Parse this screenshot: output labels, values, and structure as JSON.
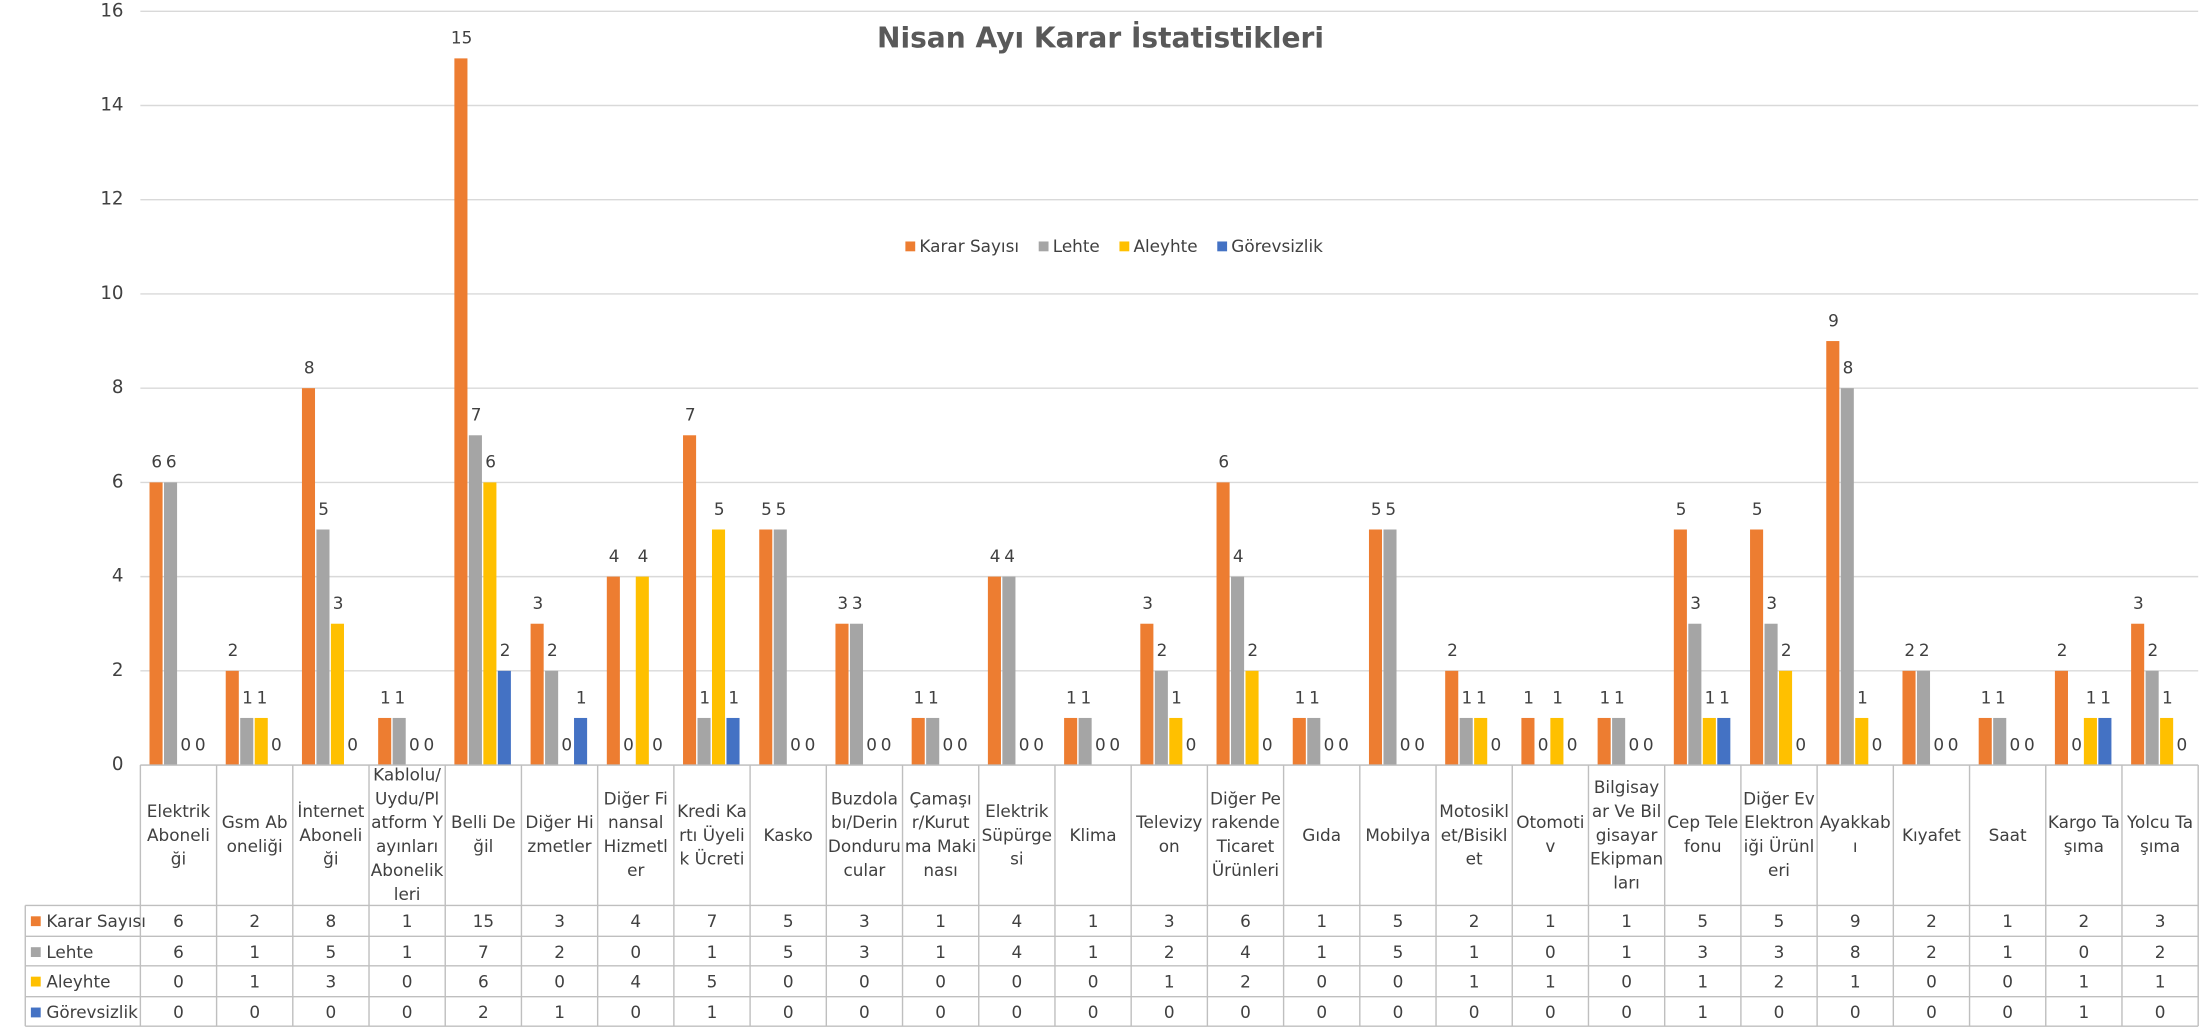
{
  "chart_data": {
    "type": "bar",
    "title": "Nisan Ayı Karar İstatistikleri",
    "categories": [
      "Elektrik Aboneliği",
      "Gsm Aboneliği",
      "İnternet Aboneliği",
      "Kablolu/Uydu/Platform Yayınları Abonelikleri",
      "Belli Değil",
      "Diğer Hizmetler",
      "Diğer Finansal Hizmetler",
      "Kredi Kartı Üyelik Ücreti",
      "Kasko",
      "Buzdolabı/Derin Dondurucular",
      "Çamaşır/Kurutma Makinası",
      "Elektrik Süpürgesi",
      "Klima",
      "Televizyon",
      "Diğer Perakende Ticaret Ürünleri",
      "Gıda",
      "Mobilya",
      "Motosiklet/Bisiklet",
      "Otomotiv",
      "Bilgisayar Ve Bilgisayar Ekipmanları",
      "Cep Telefonu",
      "Diğer Ev Elektroniği Ürünleri",
      "Ayakkabı",
      "Kıyafet",
      "Saat",
      "Kargo Taşıma",
      "Yolcu Taşıma"
    ],
    "series": [
      {
        "name": "Karar Sayısı",
        "color": "#ED7D31",
        "values": [
          6,
          2,
          8,
          1,
          15,
          3,
          4,
          7,
          5,
          3,
          1,
          4,
          1,
          3,
          6,
          1,
          5,
          2,
          1,
          1,
          5,
          5,
          9,
          2,
          1,
          2,
          3
        ]
      },
      {
        "name": "Lehte",
        "color": "#A5A5A5",
        "values": [
          6,
          1,
          5,
          1,
          7,
          2,
          0,
          1,
          5,
          3,
          1,
          4,
          1,
          2,
          4,
          1,
          5,
          1,
          0,
          1,
          3,
          3,
          8,
          2,
          1,
          0,
          2
        ]
      },
      {
        "name": "Aleyhte",
        "color": "#FFC000",
        "values": [
          0,
          1,
          3,
          0,
          6,
          0,
          4,
          5,
          0,
          0,
          0,
          0,
          0,
          1,
          2,
          0,
          0,
          1,
          1,
          0,
          1,
          2,
          1,
          0,
          0,
          1,
          1
        ]
      },
      {
        "name": "Görevsizlik",
        "color": "#4472C4",
        "values": [
          0,
          0,
          0,
          0,
          2,
          1,
          0,
          1,
          0,
          0,
          0,
          0,
          0,
          0,
          0,
          0,
          0,
          0,
          0,
          0,
          1,
          0,
          0,
          0,
          0,
          1,
          0
        ]
      }
    ],
    "ylim": [
      0,
      16
    ],
    "yticks": [
      0,
      2,
      4,
      6,
      8,
      10,
      12,
      14,
      16
    ],
    "grid": true,
    "legend": "center",
    "data_table": true
  }
}
